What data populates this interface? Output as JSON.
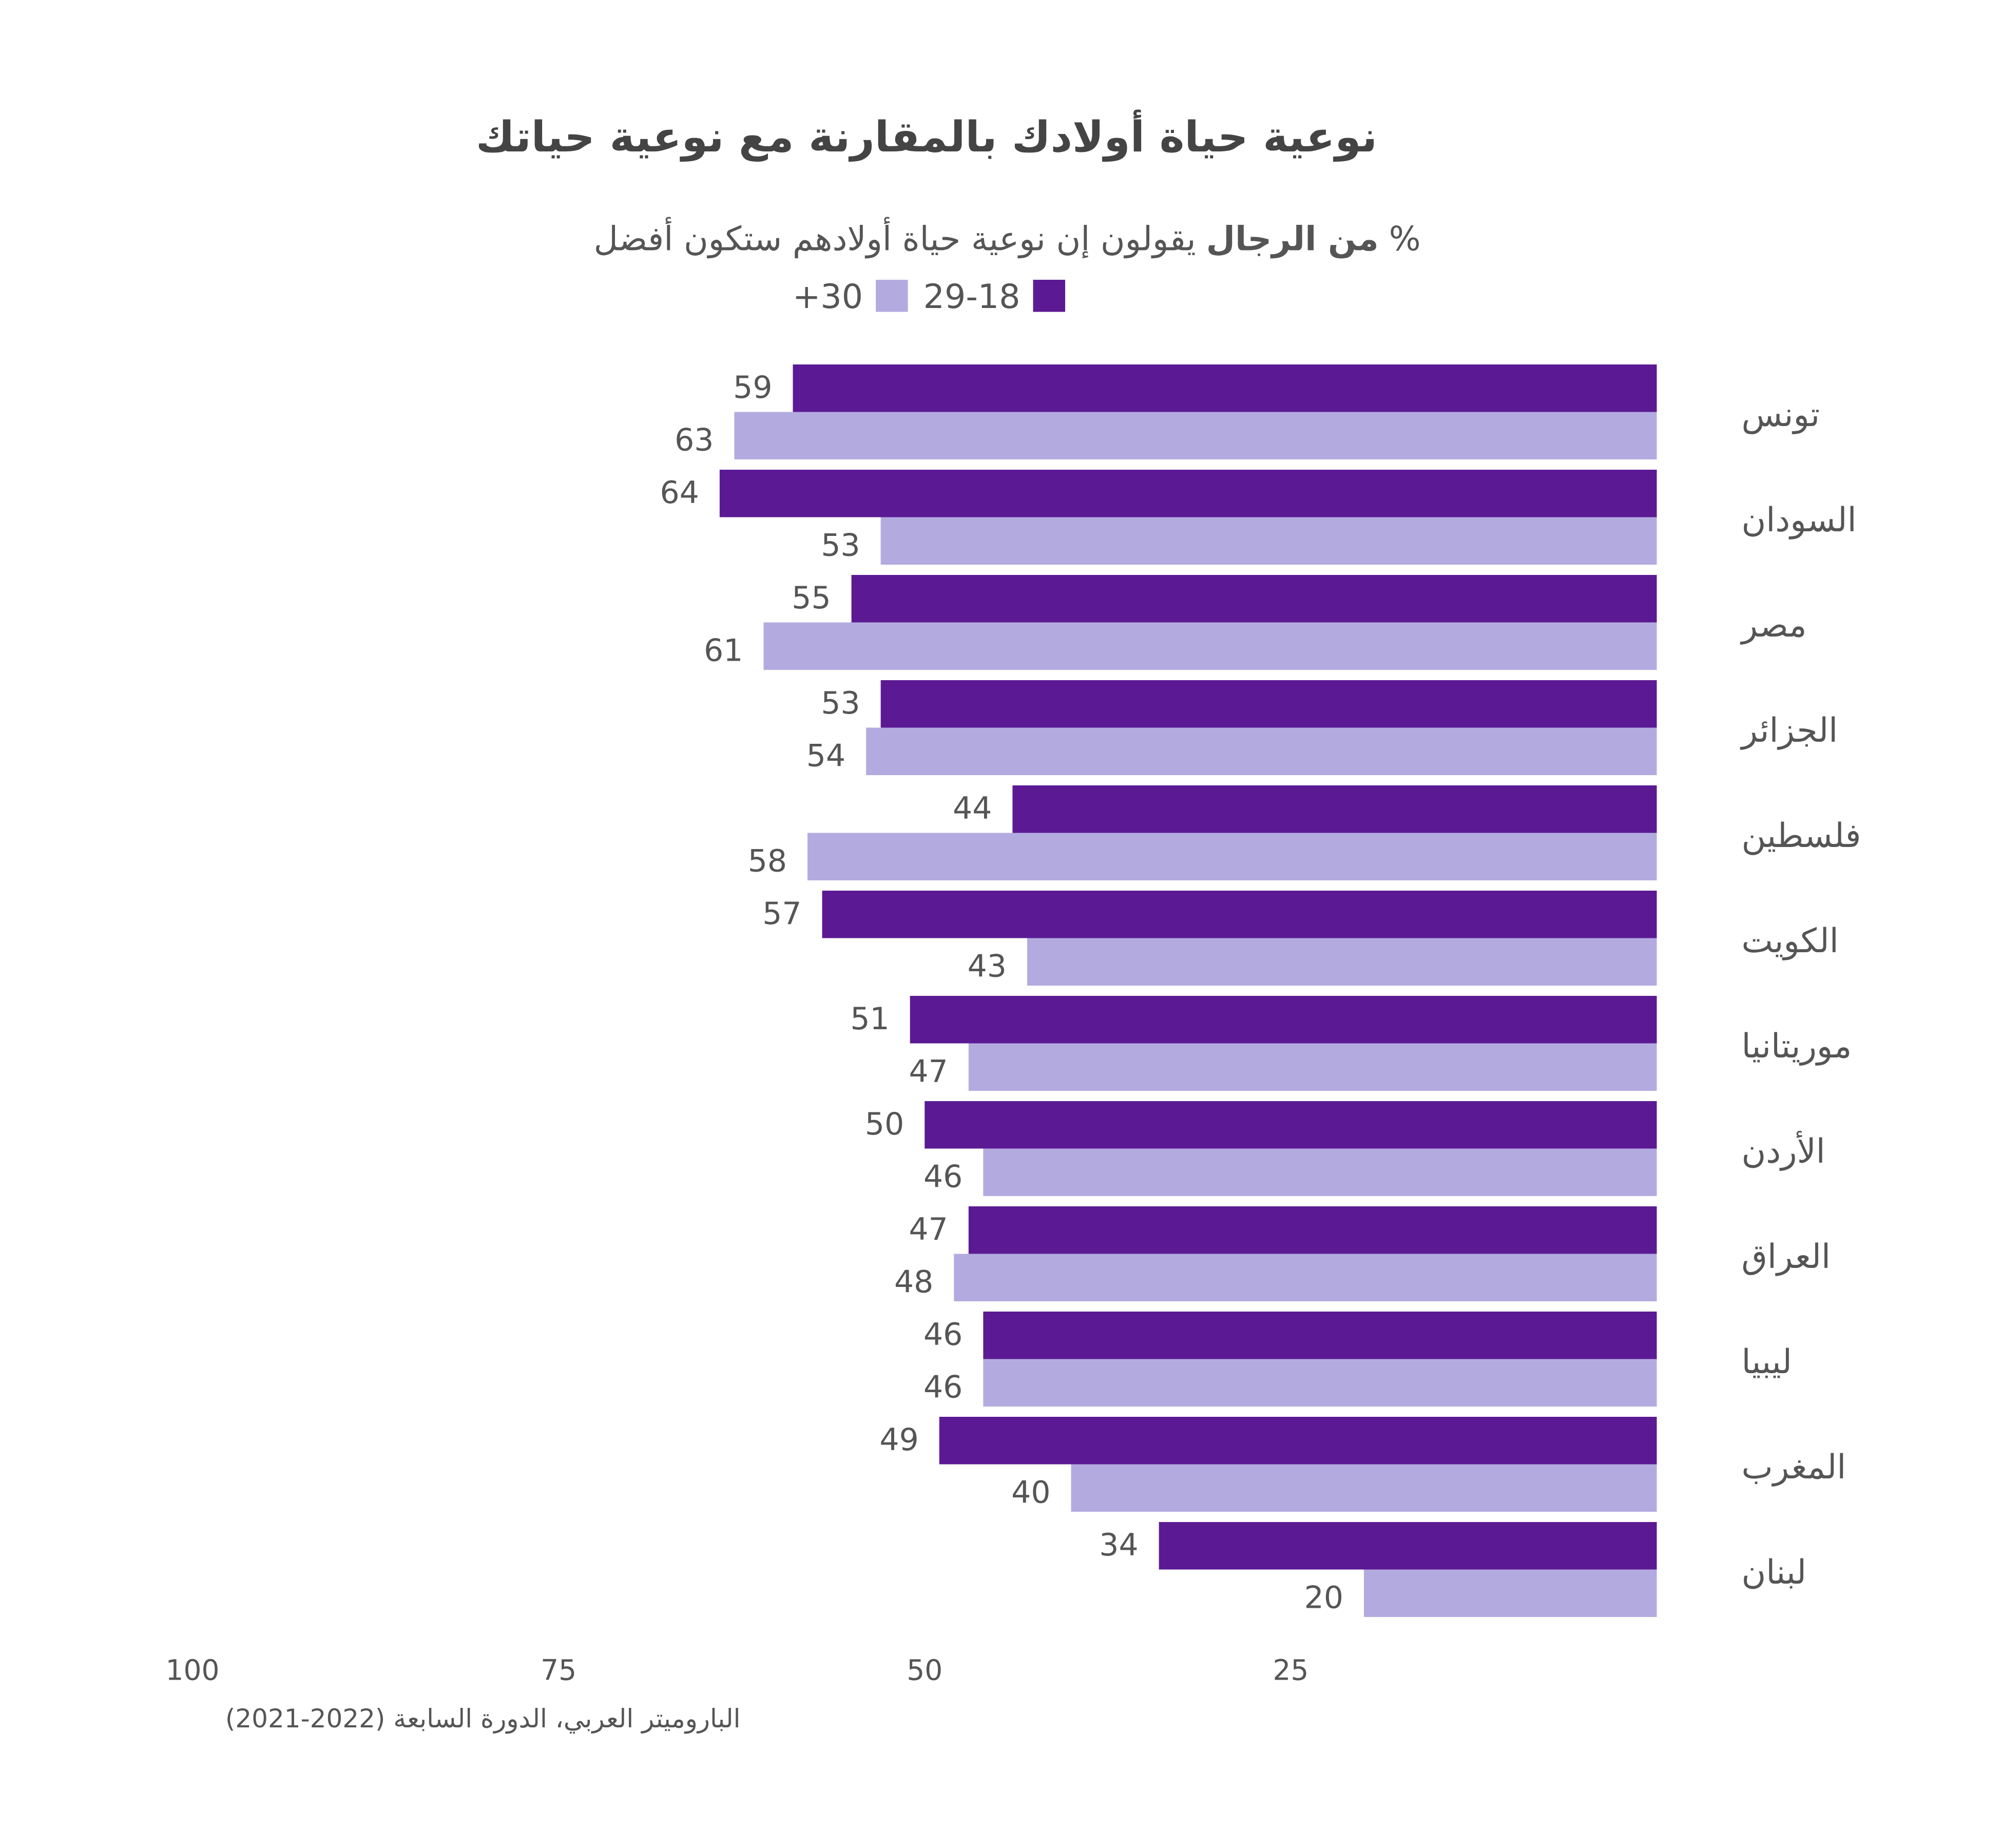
{
  "chart_data": {
    "type": "bar",
    "title": "نوعية حياة أولادك بالمقارنة مع نوعية حياتك",
    "subtitle_parts": [
      "%",
      "من الرجال",
      "يقولون إن نوعية حياة أولادهم ستكون أفضل"
    ],
    "source": "الباروميتر العربي، الدورة السابعة (2022-2021)",
    "orientation": "horizontal",
    "x_reversed": true,
    "categories": [
      "تونس",
      "السودان",
      "مصر",
      "الجزائر",
      "فلسطين",
      "الكويت",
      "موريتانيا",
      "الأردن",
      "العراق",
      "ليبيا",
      "المغرب",
      "لبنان"
    ],
    "series": [
      {
        "name": "29-18",
        "color": "#5b1a93",
        "values": [
          59,
          64,
          55,
          53,
          44,
          57,
          51,
          50,
          47,
          46,
          49,
          34
        ]
      },
      {
        "name": "+30",
        "color": "#b3abe0",
        "values": [
          63,
          53,
          61,
          54,
          58,
          43,
          47,
          46,
          48,
          46,
          40,
          20
        ]
      }
    ],
    "xlim": [
      0,
      100
    ],
    "xticks": [
      25,
      50,
      75,
      100
    ],
    "grid": false
  }
}
